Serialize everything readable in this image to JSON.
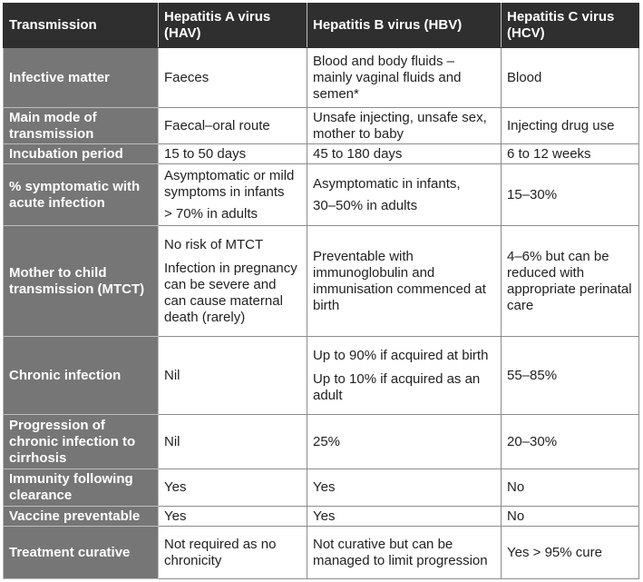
{
  "header": {
    "col0": "Transmission",
    "col1": "Hepatitis A virus (HAV)",
    "col2": "Hepatitis B virus (HBV)",
    "col3": "Hepatitis C virus (HCV)"
  },
  "rows": {
    "infective_matter": {
      "label": "Infective matter",
      "hav": "Faeces",
      "hbv": "Blood and body fluids – mainly vaginal fluids and semen*",
      "hcv": "Blood"
    },
    "main_mode": {
      "label": "Main mode of transmission",
      "hav": "Faecal–oral route",
      "hbv": "Unsafe injecting, unsafe sex, mother to baby",
      "hcv": "Injecting drug use"
    },
    "incubation": {
      "label": "Incubation period",
      "hav": "15 to 50 days",
      "hbv": "45 to 180 days",
      "hcv": "6 to 12 weeks"
    },
    "symptomatic": {
      "label": "% symptomatic with acute infection",
      "hav_1": "Asymptomatic or mild symptoms in infants",
      "hav_2": "> 70% in adults",
      "hbv_1": "Asymptomatic in infants,",
      "hbv_2": "30–50% in adults",
      "hcv": "15–30%"
    },
    "mtct": {
      "label": "Mother to child transmission (MTCT)",
      "hav_1": "No risk of MTCT",
      "hav_2": "Infection in pregnancy can be severe and can cause maternal death (rarely)",
      "hbv": "Preventable with immunoglobulin and immunisation commenced at birth",
      "hcv": "4–6% but can be reduced with appropriate perinatal care"
    },
    "chronic": {
      "label": "Chronic infection",
      "hav": "Nil",
      "hbv_1": "Up to 90% if acquired at birth",
      "hbv_2": "Up to 10% if acquired as an adult",
      "hcv": "55–85%"
    },
    "progression": {
      "label": "Progression of chronic infection to cirrhosis",
      "hav": "Nil",
      "hbv": "25%",
      "hcv": "20–30%"
    },
    "immunity": {
      "label": "Immunity following clearance",
      "hav": "Yes",
      "hbv": "Yes",
      "hcv": "No"
    },
    "vaccine": {
      "label": "Vaccine preventable",
      "hav": "Yes",
      "hbv": "Yes",
      "hcv": "No"
    },
    "treatment": {
      "label": "Treatment curative",
      "hav": "Not required as no chronicity",
      "hbv": "Not curative but can be managed to limit progression",
      "hcv": "Yes > 95% cure"
    }
  }
}
